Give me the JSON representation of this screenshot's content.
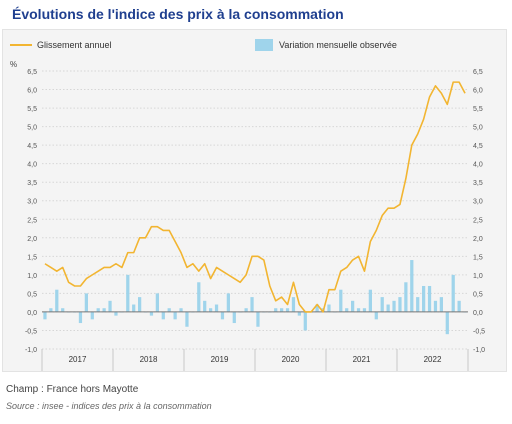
{
  "title": "Évolutions de l'indice des prix à la consommation",
  "legend": {
    "line_label": "Glissement annuel",
    "bar_label": "Variation mensuelle observée"
  },
  "notes": {
    "champ": "Champ : France hors Mayotte",
    "source": "Source : insee - indices des prix à la consommation"
  },
  "chart_data": {
    "type": "bar+line",
    "ylabel": "%",
    "ylim": [
      -1.0,
      6.5
    ],
    "yticks": [
      "6,5",
      "6,0",
      "5,5",
      "5,0",
      "4,5",
      "4,0",
      "3,5",
      "3,0",
      "2,5",
      "2,0",
      "1,5",
      "1,0",
      "0,5",
      "0,0",
      "-0,5",
      "-1,0"
    ],
    "ytick_values": [
      6.5,
      6.0,
      5.5,
      5.0,
      4.5,
      4.0,
      3.5,
      3.0,
      2.5,
      2.0,
      1.5,
      1.0,
      0.5,
      0.0,
      -0.5,
      -1.0
    ],
    "years": [
      "2017",
      "2018",
      "2019",
      "2020",
      "2021",
      "2022"
    ],
    "months_per_year": 12,
    "grid": true,
    "colors": {
      "line": "#f2b531",
      "bar": "#9fd4eb",
      "grid": "#d6d6d6"
    },
    "series": [
      {
        "name": "Glissement annuel",
        "type": "line",
        "values": [
          1.3,
          1.2,
          1.1,
          1.2,
          0.8,
          0.7,
          0.7,
          0.9,
          1.0,
          1.1,
          1.2,
          1.2,
          1.3,
          1.2,
          1.6,
          1.6,
          2.0,
          2.0,
          2.3,
          2.3,
          2.2,
          2.2,
          1.9,
          1.6,
          1.2,
          1.3,
          1.1,
          1.3,
          0.9,
          1.2,
          1.1,
          1.0,
          0.9,
          0.8,
          1.0,
          1.5,
          1.5,
          1.4,
          0.7,
          0.3,
          0.4,
          0.2,
          0.8,
          0.2,
          0.0,
          0.0,
          0.2,
          0.0,
          0.6,
          0.6,
          1.1,
          1.2,
          1.4,
          1.5,
          1.1,
          1.9,
          2.2,
          2.6,
          2.8,
          2.8,
          2.9,
          3.6,
          4.5,
          4.8,
          5.2,
          5.8,
          6.1,
          5.9,
          5.6,
          6.2,
          6.2,
          5.9
        ]
      },
      {
        "name": "Variation mensuelle observée",
        "type": "bar",
        "values": [
          -0.2,
          0.1,
          0.6,
          0.1,
          0.0,
          0.0,
          -0.3,
          0.5,
          -0.2,
          0.1,
          0.1,
          0.3,
          -0.1,
          0.0,
          1.0,
          0.2,
          0.4,
          0.0,
          -0.1,
          0.5,
          -0.2,
          0.1,
          -0.2,
          0.1,
          -0.4,
          0.0,
          0.8,
          0.3,
          0.1,
          0.2,
          -0.2,
          0.5,
          -0.3,
          0.0,
          0.1,
          0.4,
          -0.4,
          0.0,
          0.0,
          0.1,
          0.1,
          0.1,
          0.4,
          -0.1,
          -0.5,
          0.0,
          0.2,
          0.1,
          0.2,
          0.0,
          0.6,
          0.1,
          0.3,
          0.1,
          0.1,
          0.6,
          -0.2,
          0.4,
          0.2,
          0.3,
          0.4,
          0.8,
          1.4,
          0.4,
          0.7,
          0.7,
          0.3,
          0.4,
          -0.6,
          1.0,
          0.3,
          0.0
        ]
      }
    ]
  }
}
